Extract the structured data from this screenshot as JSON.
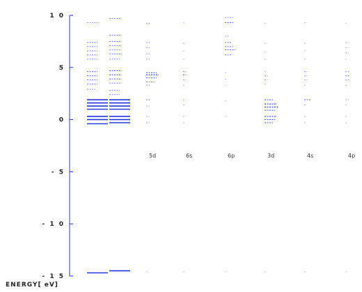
{
  "chart_data": {
    "type": "energy-level-diagram",
    "ylabel": "ENERGY[ eV]",
    "ylim": [
      -15,
      10
    ],
    "yticks": [
      {
        "value": 10,
        "label": "1 0"
      },
      {
        "value": 5,
        "label": "5"
      },
      {
        "value": 0,
        "label": "0"
      },
      {
        "value": -5,
        "label": "- 5"
      },
      {
        "value": -10,
        "label": "- 1 0"
      },
      {
        "value": -15,
        "label": "- 1 5"
      }
    ],
    "accent_color": "#2233dd",
    "columns": [
      {
        "label": "",
        "levels": [
          {
            "e": 9.3,
            "w": 0.6,
            "o": 0.45
          },
          {
            "e": 7.4,
            "w": 0.5,
            "o": 0.6
          },
          {
            "e": 7.0,
            "w": 0.5,
            "o": 0.6
          },
          {
            "e": 6.6,
            "w": 0.5,
            "o": 0.6
          },
          {
            "e": 6.2,
            "w": 0.5,
            "o": 0.6
          },
          {
            "e": 5.8,
            "w": 0.5,
            "o": 0.5
          },
          {
            "e": 4.6,
            "w": 0.5,
            "o": 0.7
          },
          {
            "e": 4.2,
            "w": 0.5,
            "o": 0.7
          },
          {
            "e": 3.8,
            "w": 0.5,
            "o": 0.7
          },
          {
            "e": 3.4,
            "w": 0.5,
            "o": 0.6
          },
          {
            "e": 2.9,
            "w": 0.4,
            "o": 0.5
          },
          {
            "e": 1.9,
            "w": 1,
            "o": 1
          },
          {
            "e": 1.6,
            "w": 1,
            "o": 1
          },
          {
            "e": 1.3,
            "w": 1,
            "o": 1
          },
          {
            "e": 1.0,
            "w": 1,
            "o": 0.9
          },
          {
            "e": 0.3,
            "w": 1,
            "o": 1
          },
          {
            "e": 0.0,
            "w": 1,
            "o": 1
          },
          {
            "e": -0.4,
            "w": 1,
            "o": 0.9
          },
          {
            "e": -14.7,
            "w": 1,
            "o": 1
          }
        ]
      },
      {
        "label": "",
        "levels": [
          {
            "e": 9.7,
            "w": 0.6,
            "o": 0.55
          },
          {
            "e": 8.1,
            "w": 0.6,
            "o": 0.55
          },
          {
            "e": 7.5,
            "w": 0.6,
            "o": 0.6
          },
          {
            "e": 7.1,
            "w": 0.6,
            "o": 0.6
          },
          {
            "e": 6.7,
            "w": 0.6,
            "o": 0.6
          },
          {
            "e": 6.3,
            "w": 0.6,
            "o": 0.6
          },
          {
            "e": 5.8,
            "w": 0.5,
            "o": 0.5
          },
          {
            "e": 4.7,
            "w": 0.6,
            "o": 0.75
          },
          {
            "e": 4.3,
            "w": 0.6,
            "o": 0.75
          },
          {
            "e": 3.9,
            "w": 0.6,
            "o": 0.75
          },
          {
            "e": 3.5,
            "w": 0.6,
            "o": 0.6
          },
          {
            "e": 2.8,
            "w": 0.5,
            "o": 0.55
          },
          {
            "e": 2.4,
            "w": 0.5,
            "o": 0.5
          },
          {
            "e": 1.9,
            "w": 1,
            "o": 1
          },
          {
            "e": 1.6,
            "w": 1,
            "o": 1
          },
          {
            "e": 1.3,
            "w": 1,
            "o": 1
          },
          {
            "e": 1.0,
            "w": 1,
            "o": 0.9
          },
          {
            "e": 0.3,
            "w": 1,
            "o": 1
          },
          {
            "e": 0.0,
            "w": 1,
            "o": 1
          },
          {
            "e": -0.3,
            "w": 1,
            "o": 0.9
          },
          {
            "e": -14.5,
            "w": 1,
            "o": 1
          }
        ]
      },
      {
        "label": "5d",
        "levels": [
          {
            "e": 9.2,
            "w": 0.2,
            "o": 0.5
          },
          {
            "e": 7.4,
            "w": 0.2,
            "o": 0.4
          },
          {
            "e": 6.9,
            "w": 0.2,
            "o": 0.4
          },
          {
            "e": 6.3,
            "w": 0.2,
            "o": 0.4
          },
          {
            "e": 5.8,
            "w": 0.2,
            "o": 0.4
          },
          {
            "e": 4.5,
            "w": 0.5,
            "o": 0.8
          },
          {
            "e": 4.3,
            "w": 0.6,
            "o": 0.9
          },
          {
            "e": 4.0,
            "w": 0.5,
            "o": 0.8
          },
          {
            "e": 3.6,
            "w": 0.4,
            "o": 0.6
          },
          {
            "e": 3.3,
            "w": 0.2,
            "o": 0.4
          },
          {
            "e": 1.9,
            "w": 0.2,
            "o": 0.6
          },
          {
            "e": 1.3,
            "w": 0.15,
            "o": 0.4
          },
          {
            "e": 0.3,
            "w": 0.15,
            "o": 0.4
          },
          {
            "e": -0.3,
            "w": 0.15,
            "o": 0.4
          },
          {
            "e": -14.6,
            "w": 0.1,
            "o": 0.3
          }
        ]
      },
      {
        "label": "6s",
        "levels": [
          {
            "e": 9.3,
            "w": 0.1,
            "o": 0.3
          },
          {
            "e": 7.3,
            "w": 0.1,
            "o": 0.3
          },
          {
            "e": 6.6,
            "w": 0.1,
            "o": 0.3
          },
          {
            "e": 5.8,
            "w": 0.1,
            "o": 0.3
          },
          {
            "e": 4.6,
            "w": 0.15,
            "o": 0.6
          },
          {
            "e": 4.3,
            "w": 0.15,
            "o": 0.6
          },
          {
            "e": 3.8,
            "w": 0.15,
            "o": 0.5
          },
          {
            "e": 3.3,
            "w": 0.1,
            "o": 0.35
          },
          {
            "e": 1.9,
            "w": 0.1,
            "o": 0.4
          },
          {
            "e": 1.4,
            "w": 0.1,
            "o": 0.35
          },
          {
            "e": 0.3,
            "w": 0.1,
            "o": 0.35
          },
          {
            "e": -0.3,
            "w": 0.1,
            "o": 0.3
          },
          {
            "e": -14.6,
            "w": 0.1,
            "o": 0.3
          }
        ]
      },
      {
        "label": "6p",
        "levels": [
          {
            "e": 9.8,
            "w": 0.4,
            "o": 0.5
          },
          {
            "e": 9.3,
            "w": 0.4,
            "o": 0.7
          },
          {
            "e": 8.0,
            "w": 0.2,
            "o": 0.4
          },
          {
            "e": 7.4,
            "w": 0.3,
            "o": 0.6
          },
          {
            "e": 7.0,
            "w": 0.4,
            "o": 0.7
          },
          {
            "e": 6.7,
            "w": 0.5,
            "o": 0.8
          },
          {
            "e": 6.2,
            "w": 0.3,
            "o": 0.6
          },
          {
            "e": 4.5,
            "w": 0.1,
            "o": 0.3
          },
          {
            "e": 3.9,
            "w": 0.1,
            "o": 0.3
          },
          {
            "e": 3.3,
            "w": 0.1,
            "o": 0.3
          },
          {
            "e": 1.8,
            "w": 0.1,
            "o": 0.3
          },
          {
            "e": 0.3,
            "w": 0.1,
            "o": 0.3
          },
          {
            "e": -14.6,
            "w": 0.1,
            "o": 0.3
          }
        ]
      },
      {
        "label": "3d",
        "levels": [
          {
            "e": 9.2,
            "w": 0.1,
            "o": 0.3
          },
          {
            "e": 7.3,
            "w": 0.1,
            "o": 0.3
          },
          {
            "e": 6.5,
            "w": 0.1,
            "o": 0.3
          },
          {
            "e": 5.8,
            "w": 0.1,
            "o": 0.3
          },
          {
            "e": 4.6,
            "w": 0.1,
            "o": 0.35
          },
          {
            "e": 4.2,
            "w": 0.15,
            "o": 0.5
          },
          {
            "e": 3.8,
            "w": 0.15,
            "o": 0.5
          },
          {
            "e": 3.4,
            "w": 0.1,
            "o": 0.35
          },
          {
            "e": 1.9,
            "w": 0.4,
            "o": 0.8
          },
          {
            "e": 1.5,
            "w": 0.6,
            "o": 0.9
          },
          {
            "e": 1.2,
            "w": 0.7,
            "o": 1
          },
          {
            "e": 0.9,
            "w": 0.5,
            "o": 0.8
          },
          {
            "e": 0.3,
            "w": 0.6,
            "o": 0.9
          },
          {
            "e": 0.0,
            "w": 0.5,
            "o": 0.8
          },
          {
            "e": -0.3,
            "w": 0.4,
            "o": 0.7
          },
          {
            "e": -14.6,
            "w": 0.1,
            "o": 0.3
          }
        ]
      },
      {
        "label": "4s",
        "levels": [
          {
            "e": 9.3,
            "w": 0.1,
            "o": 0.3
          },
          {
            "e": 7.3,
            "w": 0.1,
            "o": 0.3
          },
          {
            "e": 6.6,
            "w": 0.1,
            "o": 0.3
          },
          {
            "e": 5.8,
            "w": 0.1,
            "o": 0.3
          },
          {
            "e": 4.6,
            "w": 0.15,
            "o": 0.5
          },
          {
            "e": 4.2,
            "w": 0.15,
            "o": 0.5
          },
          {
            "e": 3.8,
            "w": 0.15,
            "o": 0.45
          },
          {
            "e": 3.3,
            "w": 0.1,
            "o": 0.35
          },
          {
            "e": 1.9,
            "w": 0.3,
            "o": 0.7
          },
          {
            "e": 1.4,
            "w": 0.1,
            "o": 0.35
          },
          {
            "e": 0.3,
            "w": 0.1,
            "o": 0.35
          },
          {
            "e": -0.3,
            "w": 0.1,
            "o": 0.3
          },
          {
            "e": -14.6,
            "w": 0.1,
            "o": 0.3
          }
        ]
      },
      {
        "label": "4p",
        "levels": [
          {
            "e": 9.2,
            "w": 0.1,
            "o": 0.3
          },
          {
            "e": 7.4,
            "w": 0.15,
            "o": 0.4
          },
          {
            "e": 6.9,
            "w": 0.15,
            "o": 0.4
          },
          {
            "e": 6.4,
            "w": 0.15,
            "o": 0.4
          },
          {
            "e": 5.8,
            "w": 0.1,
            "o": 0.3
          },
          {
            "e": 4.6,
            "w": 0.2,
            "o": 0.5
          },
          {
            "e": 4.2,
            "w": 0.2,
            "o": 0.6
          },
          {
            "e": 3.8,
            "w": 0.2,
            "o": 0.55
          },
          {
            "e": 3.3,
            "w": 0.1,
            "o": 0.35
          },
          {
            "e": 1.9,
            "w": 0.15,
            "o": 0.4
          },
          {
            "e": 1.4,
            "w": 0.1,
            "o": 0.35
          },
          {
            "e": 0.3,
            "w": 0.1,
            "o": 0.35
          },
          {
            "e": -0.3,
            "w": 0.1,
            "o": 0.3
          },
          {
            "e": -14.6,
            "w": 0.1,
            "o": 0.3
          }
        ]
      }
    ]
  }
}
